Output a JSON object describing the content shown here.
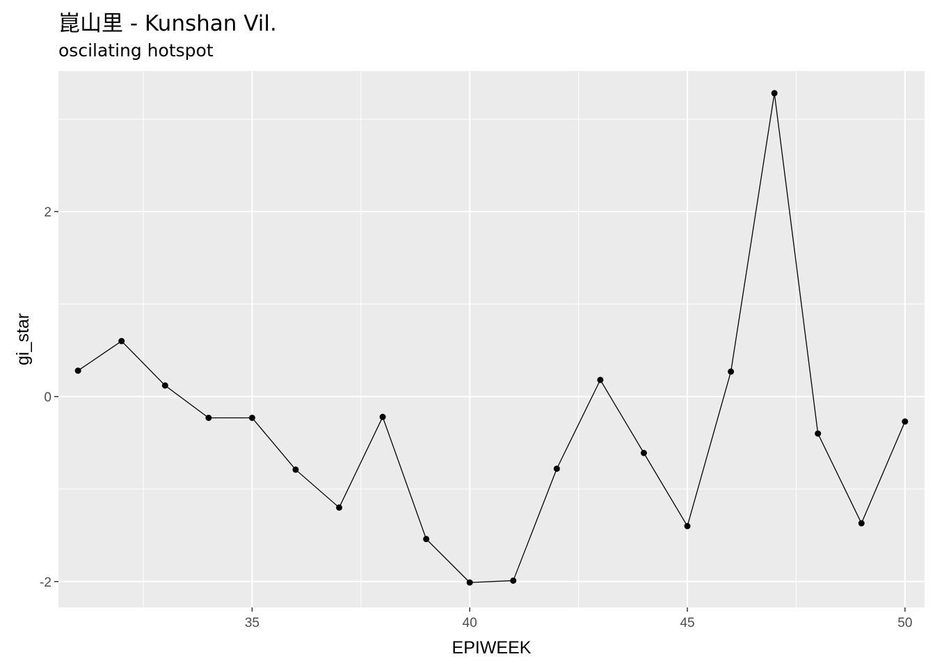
{
  "chart_data": {
    "type": "line",
    "title": "崑山里 - Kunshan Vil.",
    "subtitle": "oscilating hotspot",
    "xlabel": "EPIWEEK",
    "ylabel": "gi_star",
    "xlim": [
      30.55,
      50.45
    ],
    "ylim": [
      -2.28,
      3.52
    ],
    "x_ticks": [
      35,
      40,
      45,
      50
    ],
    "x_tick_labels": [
      "35",
      "40",
      "45",
      "50"
    ],
    "y_ticks": [
      -2,
      0,
      2
    ],
    "y_tick_labels": [
      "-2",
      "0",
      "2"
    ],
    "grid": true,
    "background": "#ebebeb",
    "line_color": "#000000",
    "x": [
      31,
      32,
      33,
      34,
      35,
      36,
      37,
      38,
      39,
      40,
      41,
      42,
      43,
      44,
      45,
      46,
      47,
      48,
      49,
      50
    ],
    "values": [
      0.28,
      0.6,
      0.12,
      -0.23,
      -0.23,
      -0.79,
      -1.2,
      -0.22,
      -1.54,
      -2.01,
      -1.99,
      -0.78,
      0.18,
      -0.61,
      -1.4,
      0.27,
      3.28,
      -0.4,
      -1.37,
      -0.27
    ]
  }
}
